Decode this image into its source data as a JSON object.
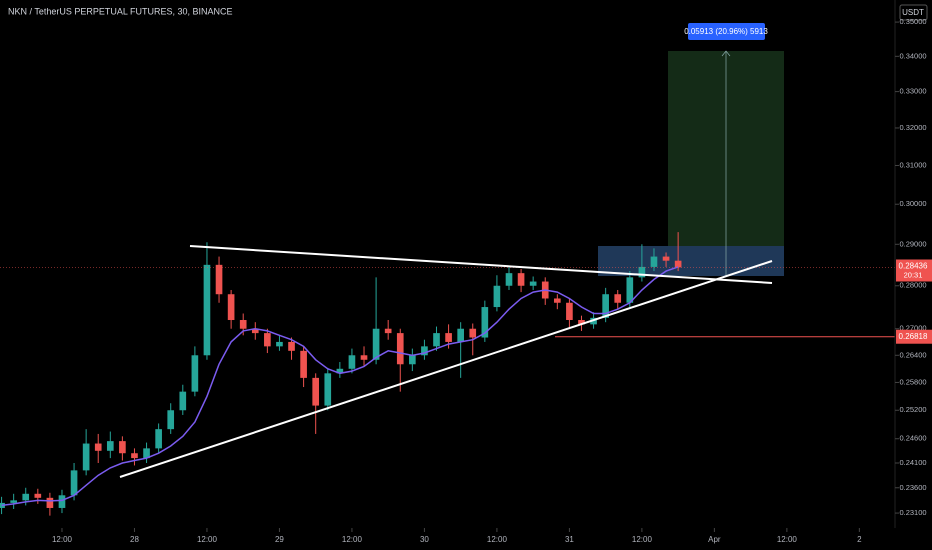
{
  "chart_data": {
    "type": "candlestick",
    "title": "NKN / TetherUS PERPETUAL FUTURES, 30, BINANCE",
    "currency": "USDT",
    "log_scale": true,
    "up_color": "#26a69a",
    "down_color": "#ef5350",
    "ma_color": "#7b5cf0",
    "x": [
      2,
      4,
      6,
      8,
      10,
      12,
      14,
      16,
      18,
      20,
      22,
      24,
      26,
      28,
      30,
      32,
      34,
      36,
      38,
      40,
      42,
      44,
      46,
      48,
      50,
      52,
      54,
      56,
      58,
      60,
      62,
      64,
      66,
      68,
      70,
      72,
      74,
      76,
      78,
      80,
      82,
      84,
      86,
      88,
      90,
      92,
      94,
      96,
      98,
      100,
      102,
      104,
      106,
      108,
      110,
      112,
      114
    ],
    "open": [
      0.232,
      0.233,
      0.2335,
      0.2348,
      0.234,
      0.232,
      0.2345,
      0.2395,
      0.245,
      0.2435,
      0.2455,
      0.243,
      0.242,
      0.244,
      0.248,
      0.252,
      0.256,
      0.264,
      0.285,
      0.278,
      0.272,
      0.27,
      0.269,
      0.266,
      0.267,
      0.265,
      0.259,
      0.253,
      0.26,
      0.261,
      0.264,
      0.263,
      0.27,
      0.269,
      0.262,
      0.264,
      0.266,
      0.269,
      0.267,
      0.27,
      0.268,
      0.275,
      0.28,
      0.283,
      0.28,
      0.281,
      0.277,
      0.276,
      0.272,
      0.271,
      0.2725,
      0.278,
      0.276,
      0.282,
      0.2845,
      0.287,
      0.286
    ],
    "high": [
      0.2342,
      0.2348,
      0.236,
      0.2358,
      0.235,
      0.2356,
      0.241,
      0.248,
      0.247,
      0.2475,
      0.2465,
      0.244,
      0.2452,
      0.2492,
      0.2535,
      0.2575,
      0.266,
      0.2905,
      0.287,
      0.279,
      0.2735,
      0.2715,
      0.27,
      0.2685,
      0.268,
      0.266,
      0.26,
      0.2612,
      0.2625,
      0.2655,
      0.266,
      0.282,
      0.272,
      0.27,
      0.2655,
      0.2675,
      0.2705,
      0.271,
      0.2715,
      0.2712,
      0.2765,
      0.2825,
      0.2845,
      0.284,
      0.2822,
      0.282,
      0.278,
      0.277,
      0.273,
      0.2738,
      0.2795,
      0.279,
      0.2835,
      0.29,
      0.289,
      0.288,
      0.293
    ],
    "low": [
      0.2308,
      0.2318,
      0.2325,
      0.2328,
      0.2305,
      0.231,
      0.2335,
      0.2385,
      0.241,
      0.242,
      0.2415,
      0.2405,
      0.241,
      0.243,
      0.247,
      0.251,
      0.255,
      0.263,
      0.276,
      0.27,
      0.2685,
      0.2675,
      0.2645,
      0.265,
      0.263,
      0.257,
      0.247,
      0.252,
      0.259,
      0.26,
      0.2615,
      0.262,
      0.2675,
      0.256,
      0.2605,
      0.263,
      0.265,
      0.2655,
      0.259,
      0.264,
      0.267,
      0.274,
      0.279,
      0.2785,
      0.279,
      0.2755,
      0.2745,
      0.27,
      0.2695,
      0.27,
      0.2715,
      0.2745,
      0.275,
      0.281,
      0.2835,
      0.2845,
      0.2835
    ],
    "close": [
      0.233,
      0.2335,
      0.2348,
      0.234,
      0.232,
      0.2345,
      0.2395,
      0.245,
      0.2435,
      0.2455,
      0.243,
      0.242,
      0.244,
      0.248,
      0.252,
      0.256,
      0.264,
      0.285,
      0.278,
      0.272,
      0.27,
      0.269,
      0.266,
      0.267,
      0.265,
      0.259,
      0.253,
      0.26,
      0.261,
      0.264,
      0.263,
      0.27,
      0.269,
      0.262,
      0.264,
      0.266,
      0.269,
      0.267,
      0.27,
      0.268,
      0.275,
      0.28,
      0.283,
      0.28,
      0.281,
      0.277,
      0.276,
      0.272,
      0.271,
      0.2725,
      0.278,
      0.276,
      0.282,
      0.2845,
      0.287,
      0.286,
      0.2844
    ],
    "ma": [
      0.2325,
      0.2328,
      0.2332,
      0.2335,
      0.2334,
      0.2335,
      0.2345,
      0.2365,
      0.2385,
      0.24,
      0.241,
      0.2415,
      0.242,
      0.243,
      0.2445,
      0.2465,
      0.2495,
      0.255,
      0.262,
      0.267,
      0.2695,
      0.27,
      0.2695,
      0.2685,
      0.2675,
      0.266,
      0.263,
      0.261,
      0.26,
      0.2605,
      0.2615,
      0.2635,
      0.265,
      0.2645,
      0.264,
      0.2645,
      0.2655,
      0.2665,
      0.267,
      0.2675,
      0.269,
      0.2715,
      0.2745,
      0.277,
      0.2785,
      0.279,
      0.2785,
      0.277,
      0.275,
      0.2735,
      0.2735,
      0.2745,
      0.276,
      0.279,
      0.2815,
      0.2835,
      0.2845
    ],
    "xlim": [
      1.74,
      149.9
    ],
    "xticks": [
      {
        "value": 12,
        "label": "12:00"
      },
      {
        "value": 24,
        "label": "28"
      },
      {
        "value": 36,
        "label": "12:00"
      },
      {
        "value": 48,
        "label": "29"
      },
      {
        "value": 60,
        "label": "12:00"
      },
      {
        "value": 72,
        "label": "30"
      },
      {
        "value": 84,
        "label": "12:00"
      },
      {
        "value": 96,
        "label": "31"
      },
      {
        "value": 108,
        "label": "12:00"
      },
      {
        "value": 120,
        "label": "Apr"
      },
      {
        "value": 132,
        "label": "12:00"
      },
      {
        "value": 144,
        "label": "2"
      }
    ],
    "ylim": [
      0.2281,
      0.3566
    ],
    "yticks": [
      {
        "value": 0.35,
        "label": "0.35000"
      },
      {
        "value": 0.34,
        "label": "0.34000"
      },
      {
        "value": 0.33,
        "label": "0.33000"
      },
      {
        "value": 0.32,
        "label": "0.32000"
      },
      {
        "value": 0.31,
        "label": "0.31000"
      },
      {
        "value": 0.3,
        "label": "0.30000"
      },
      {
        "value": 0.29,
        "label": "0.29000"
      },
      {
        "value": 0.28,
        "label": "0.28000"
      },
      {
        "value": 0.27,
        "label": "0.27000"
      },
      {
        "value": 0.264,
        "label": "0.26400"
      },
      {
        "value": 0.258,
        "label": "0.25800"
      },
      {
        "value": 0.252,
        "label": "0.25200"
      },
      {
        "value": 0.246,
        "label": "0.24600"
      },
      {
        "value": 0.241,
        "label": "0.24100"
      },
      {
        "value": 0.236,
        "label": "0.23600"
      },
      {
        "value": 0.231,
        "label": "0.23100"
      }
    ],
    "last_price": 0.28436,
    "countdown": "20:31",
    "level": 0.26818,
    "position_label": "0.05913 (20.96%) 5913"
  }
}
